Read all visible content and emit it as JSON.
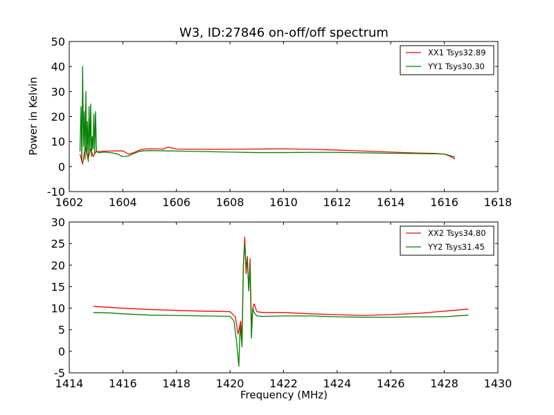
{
  "figure": {
    "title": "W3, ID:27846 on-off/off spectrum",
    "ylabel": "Power in Kelvin",
    "xlabel": "Frequency (MHz)"
  },
  "chart_data": [
    {
      "type": "line",
      "title": "W3, ID:27846 on-off/off spectrum",
      "xlabel": "",
      "ylabel": "Power in Kelvin",
      "xlim": [
        1602,
        1618
      ],
      "ylim": [
        -10,
        50
      ],
      "xticks": [
        1602,
        1604,
        1606,
        1608,
        1610,
        1612,
        1614,
        1616,
        1618
      ],
      "yticks": [
        -10,
        0,
        10,
        20,
        30,
        40,
        50
      ],
      "grid": false,
      "legend_position": "top-right",
      "series": [
        {
          "name": "XX1 Tsys32.89",
          "color": "#ff0000",
          "x": [
            1602.4,
            1602.5,
            1602.6,
            1602.7,
            1602.8,
            1602.9,
            1603.0,
            1603.5,
            1604.0,
            1604.2,
            1604.4,
            1604.6,
            1604.8,
            1605.0,
            1605.5,
            1605.7,
            1606.0,
            1607.0,
            1608.0,
            1609.0,
            1610.0,
            1611.0,
            1612.0,
            1613.0,
            1614.0,
            1615.0,
            1615.6,
            1616.0,
            1616.2,
            1616.4
          ],
          "values": [
            5,
            1,
            8,
            3,
            7,
            4,
            6,
            6.2,
            6.3,
            5.0,
            5.5,
            6.5,
            7.0,
            7.1,
            7.0,
            7.8,
            7.0,
            6.9,
            6.9,
            7.0,
            7.1,
            6.9,
            6.6,
            6.2,
            5.8,
            5.4,
            5.3,
            5.0,
            4.2,
            3.0
          ]
        },
        {
          "name": "YY1 Tsys30.30",
          "color": "#008000",
          "x": [
            1602.4,
            1602.44,
            1602.47,
            1602.5,
            1602.53,
            1602.56,
            1602.59,
            1602.62,
            1602.65,
            1602.68,
            1602.71,
            1602.74,
            1602.77,
            1602.8,
            1602.83,
            1602.86,
            1602.89,
            1602.92,
            1602.95,
            1602.98,
            1603.02,
            1603.1,
            1603.3,
            1603.6,
            1603.8,
            1604.0,
            1604.2,
            1604.4,
            1604.6,
            1604.8,
            1605.0,
            1605.5,
            1606.0,
            1607.0,
            1608.0,
            1609.0,
            1610.0,
            1611.0,
            1612.0,
            1613.0,
            1614.0,
            1615.0,
            1615.6,
            1616.0,
            1616.2,
            1616.4
          ],
          "values": [
            6,
            24,
            2,
            40,
            8,
            22,
            3,
            30,
            5,
            18,
            2,
            24,
            6,
            25,
            4,
            12,
            7,
            21,
            5,
            22,
            6,
            5.5,
            5.8,
            5.5,
            5.0,
            4.0,
            4.2,
            5.2,
            6.0,
            6.3,
            6.4,
            6.3,
            6.2,
            6.0,
            5.8,
            5.6,
            5.6,
            5.7,
            5.7,
            5.5,
            5.3,
            5.2,
            5.1,
            5.0,
            4.4,
            3.8
          ]
        }
      ]
    },
    {
      "type": "line",
      "title": "",
      "xlabel": "Frequency (MHz)",
      "ylabel": "",
      "xlim": [
        1414,
        1430
      ],
      "ylim": [
        -5,
        30
      ],
      "xticks": [
        1414,
        1416,
        1418,
        1420,
        1422,
        1424,
        1426,
        1428,
        1430
      ],
      "yticks": [
        -5,
        0,
        5,
        10,
        15,
        20,
        25,
        30
      ],
      "grid": false,
      "legend_position": "top-right",
      "series": [
        {
          "name": "XX2 Tsys34.80",
          "color": "#ff0000",
          "x": [
            1414.9,
            1415.5,
            1416.0,
            1417.0,
            1418.0,
            1419.0,
            1420.0,
            1420.2,
            1420.3,
            1420.4,
            1420.45,
            1420.5,
            1420.55,
            1420.6,
            1420.65,
            1420.7,
            1420.75,
            1420.8,
            1420.85,
            1420.9,
            1421.0,
            1421.2,
            1422.0,
            1423.0,
            1424.0,
            1425.0,
            1426.0,
            1427.0,
            1428.0,
            1428.9
          ],
          "values": [
            10.4,
            10.2,
            10.0,
            9.7,
            9.5,
            9.3,
            9.2,
            8.0,
            4.0,
            7.0,
            3.0,
            20.0,
            26.5,
            18.0,
            22.0,
            14.0,
            21.5,
            6.0,
            10.0,
            11.0,
            9.2,
            9.0,
            9.0,
            8.7,
            8.5,
            8.3,
            8.5,
            8.8,
            9.3,
            9.8
          ]
        },
        {
          "name": "YY2 Tsys31.45",
          "color": "#008000",
          "x": [
            1414.9,
            1415.5,
            1416.0,
            1417.0,
            1418.0,
            1419.0,
            1420.0,
            1420.15,
            1420.25,
            1420.33,
            1420.38,
            1420.45,
            1420.5,
            1420.55,
            1420.6,
            1420.65,
            1420.7,
            1420.75,
            1420.8,
            1420.85,
            1420.9,
            1421.0,
            1421.2,
            1422.0,
            1423.0,
            1424.0,
            1425.0,
            1426.0,
            1427.0,
            1428.0,
            1428.9
          ],
          "values": [
            9.0,
            8.9,
            8.7,
            8.4,
            8.3,
            8.2,
            8.1,
            7.0,
            2.0,
            -3.5,
            6.0,
            1.0,
            20.0,
            25.0,
            20.0,
            21.0,
            14.0,
            20.0,
            3.0,
            10.0,
            9.0,
            8.2,
            8.1,
            8.2,
            8.2,
            8.0,
            7.9,
            7.9,
            8.0,
            8.0,
            8.4
          ]
        }
      ]
    }
  ]
}
